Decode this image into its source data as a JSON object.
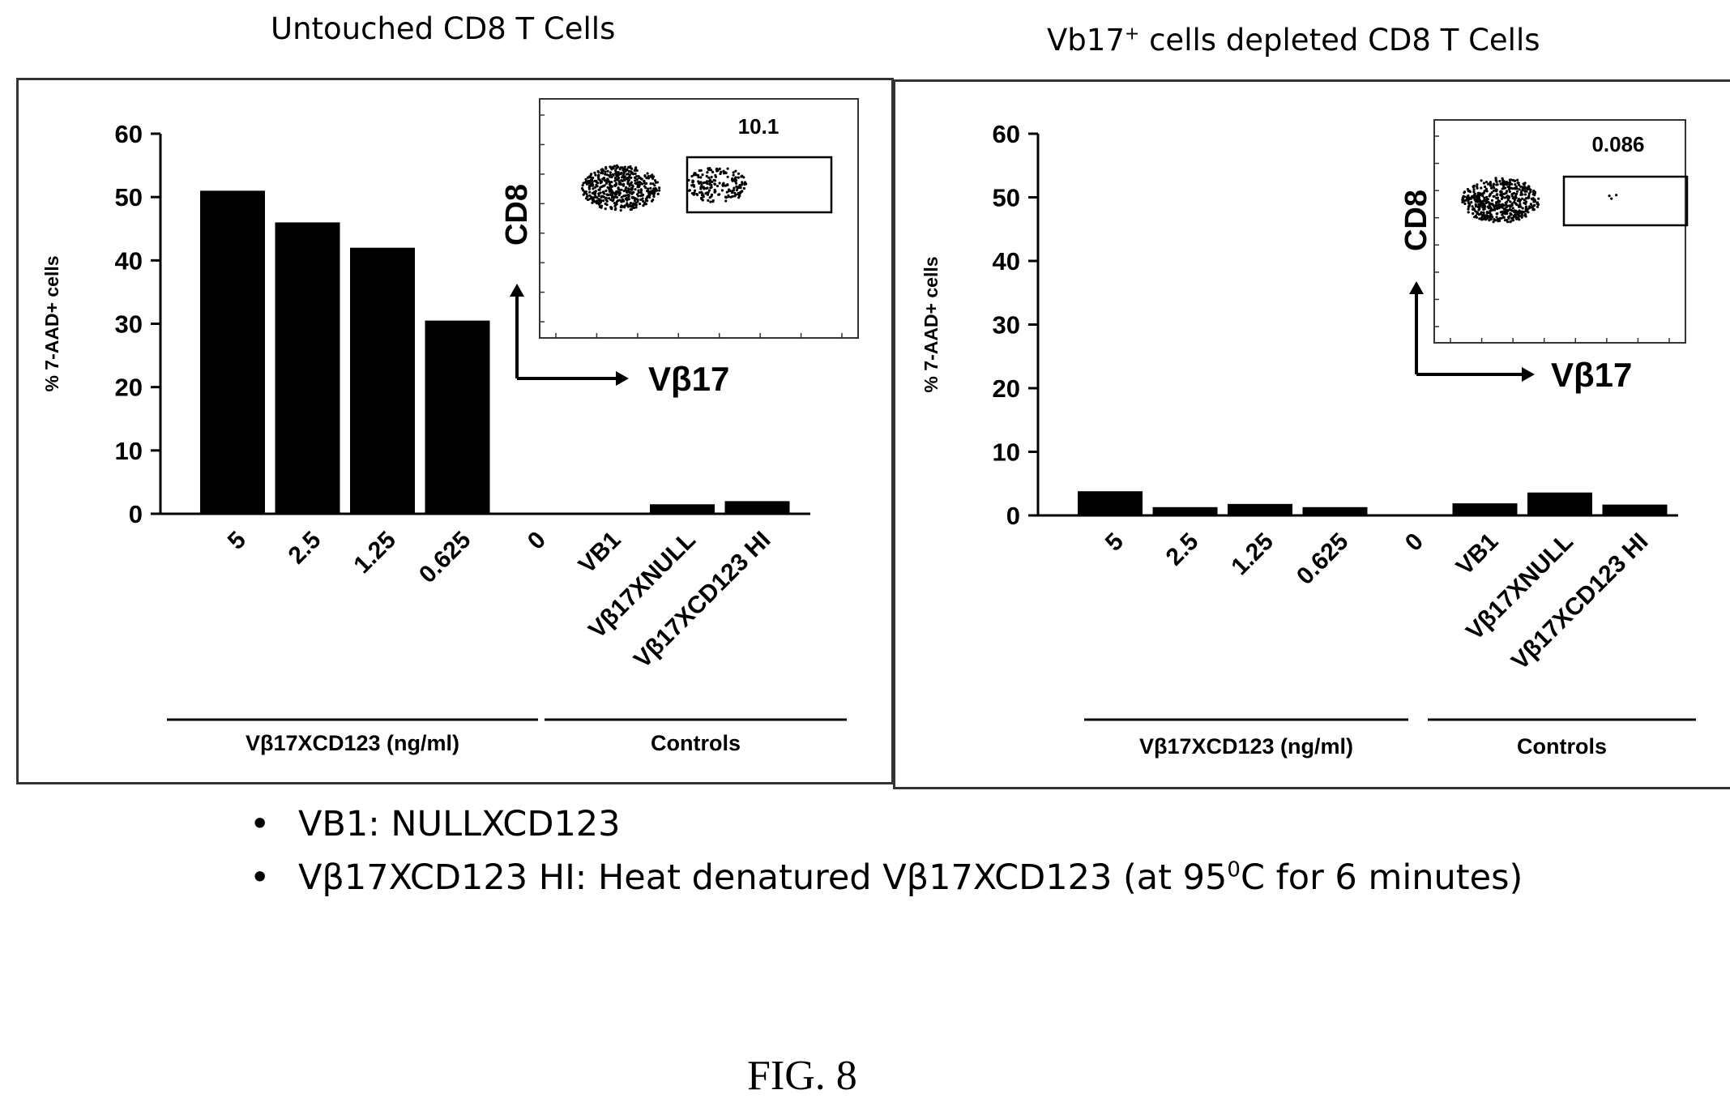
{
  "chart_data": [
    {
      "type": "bar",
      "title": "Untouched  CD8 T Cells",
      "ylabel": "% 7-AAD+ cells",
      "ylim": [
        0,
        60
      ],
      "yticks": [
        "0",
        "10",
        "20",
        "30",
        "40",
        "50",
        "60"
      ],
      "categories": [
        "5",
        "2.5",
        "1.25",
        "0.625",
        "0",
        "VB1",
        "Vβ17XNULL",
        "Vβ17XCD123 HI"
      ],
      "values": [
        51,
        46,
        42,
        30.5,
        0,
        0,
        1.5,
        2
      ],
      "groups": [
        {
          "label": "Vβ17XCD123 (ng/ml)"
        },
        {
          "label": "Controls"
        }
      ],
      "inset": {
        "ylabel": "CD8",
        "xlabel": "Vβ17",
        "gate_value": "10.1"
      },
      "bar_color": "#000000"
    },
    {
      "type": "bar",
      "title": "Vb17⁺ cells depleted  CD8 T Cells",
      "ylabel": "% 7-AAD+ cells",
      "ylim": [
        0,
        60
      ],
      "yticks": [
        "0",
        "10",
        "20",
        "30",
        "40",
        "50",
        "60"
      ],
      "categories": [
        "5",
        "2.5",
        "1.25",
        "0.625",
        "0",
        "VB1",
        "Vβ17XNULL",
        "Vβ17XCD123 HI"
      ],
      "values": [
        3.8,
        1.3,
        1.8,
        1.3,
        0,
        1.9,
        3.6,
        1.7
      ],
      "groups": [
        {
          "label": "Vβ17XCD123 (ng/ml)"
        },
        {
          "label": "Controls"
        }
      ],
      "inset": {
        "ylabel": "CD8",
        "xlabel": "Vβ17",
        "gate_value": "0.086"
      },
      "bar_color": "#000000"
    }
  ],
  "notes": {
    "bullet": "•",
    "note1": "VB1: NULLXCD123",
    "note2_prefix": "Vβ17XCD123 HI: Heat denatured Vβ17XCD123 (at 95",
    "note2_sup": "0",
    "note2_suffix": "C for 6 minutes)"
  },
  "figure_label": "FIG. 8"
}
